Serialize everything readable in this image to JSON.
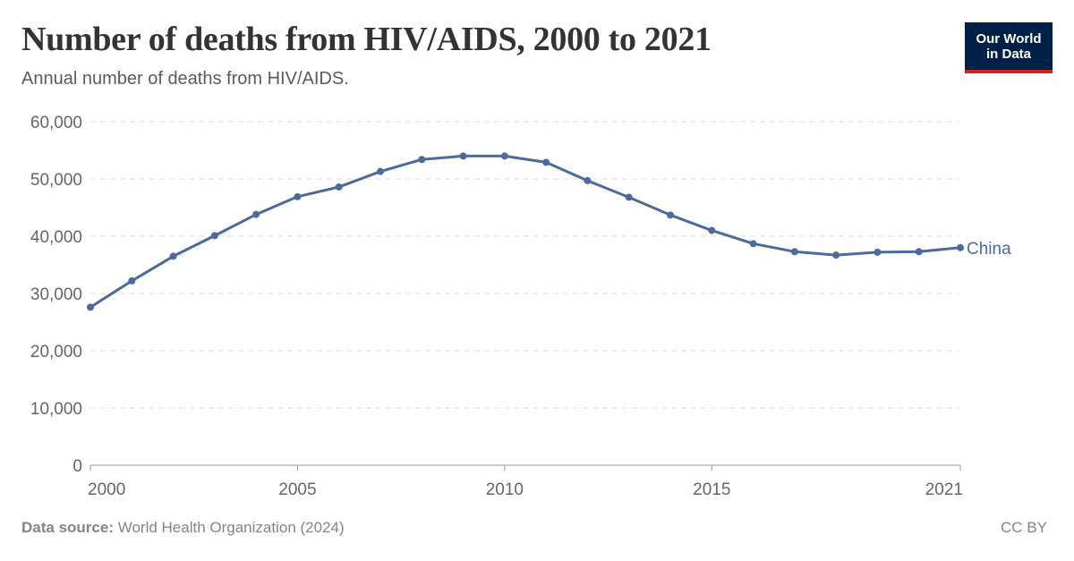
{
  "header": {
    "title": "Number of deaths from HIV/AIDS, 2000 to 2021",
    "subtitle": "Annual number of deaths from HIV/AIDS."
  },
  "logo": {
    "line1": "Our World",
    "line2": "in Data"
  },
  "footer": {
    "source_label": "Data source:",
    "source_text": "World Health Organization (2024)",
    "license": "CC BY"
  },
  "colors": {
    "series": "#4c6a9c",
    "grid": "#dddddd",
    "axis": "#999999",
    "logo_bg": "#002147",
    "logo_accent": "#ce261e"
  },
  "chart_data": {
    "type": "line",
    "x": [
      2000,
      2001,
      2002,
      2003,
      2004,
      2005,
      2006,
      2007,
      2008,
      2009,
      2010,
      2011,
      2012,
      2013,
      2014,
      2015,
      2016,
      2017,
      2018,
      2019,
      2020,
      2021
    ],
    "series": [
      {
        "name": "China",
        "values": [
          27600,
          32200,
          36500,
          40100,
          43800,
          46900,
          48600,
          51300,
          53400,
          54000,
          54000,
          52900,
          49700,
          46800,
          43700,
          41000,
          38700,
          37300,
          36700,
          37200,
          37300,
          38000
        ]
      }
    ],
    "xlim": [
      2000,
      2021
    ],
    "ylim": [
      0,
      60000
    ],
    "y_ticks": [
      0,
      10000,
      20000,
      30000,
      40000,
      50000,
      60000
    ],
    "y_tick_labels": [
      "0",
      "10,000",
      "20,000",
      "30,000",
      "40,000",
      "50,000",
      "60,000"
    ],
    "x_ticks": [
      2000,
      2005,
      2010,
      2015,
      2021
    ],
    "x_tick_labels": [
      "2000",
      "2005",
      "2010",
      "2015",
      "2021"
    ],
    "grid": "horizontal-dashed",
    "legend": "end-of-line label"
  }
}
